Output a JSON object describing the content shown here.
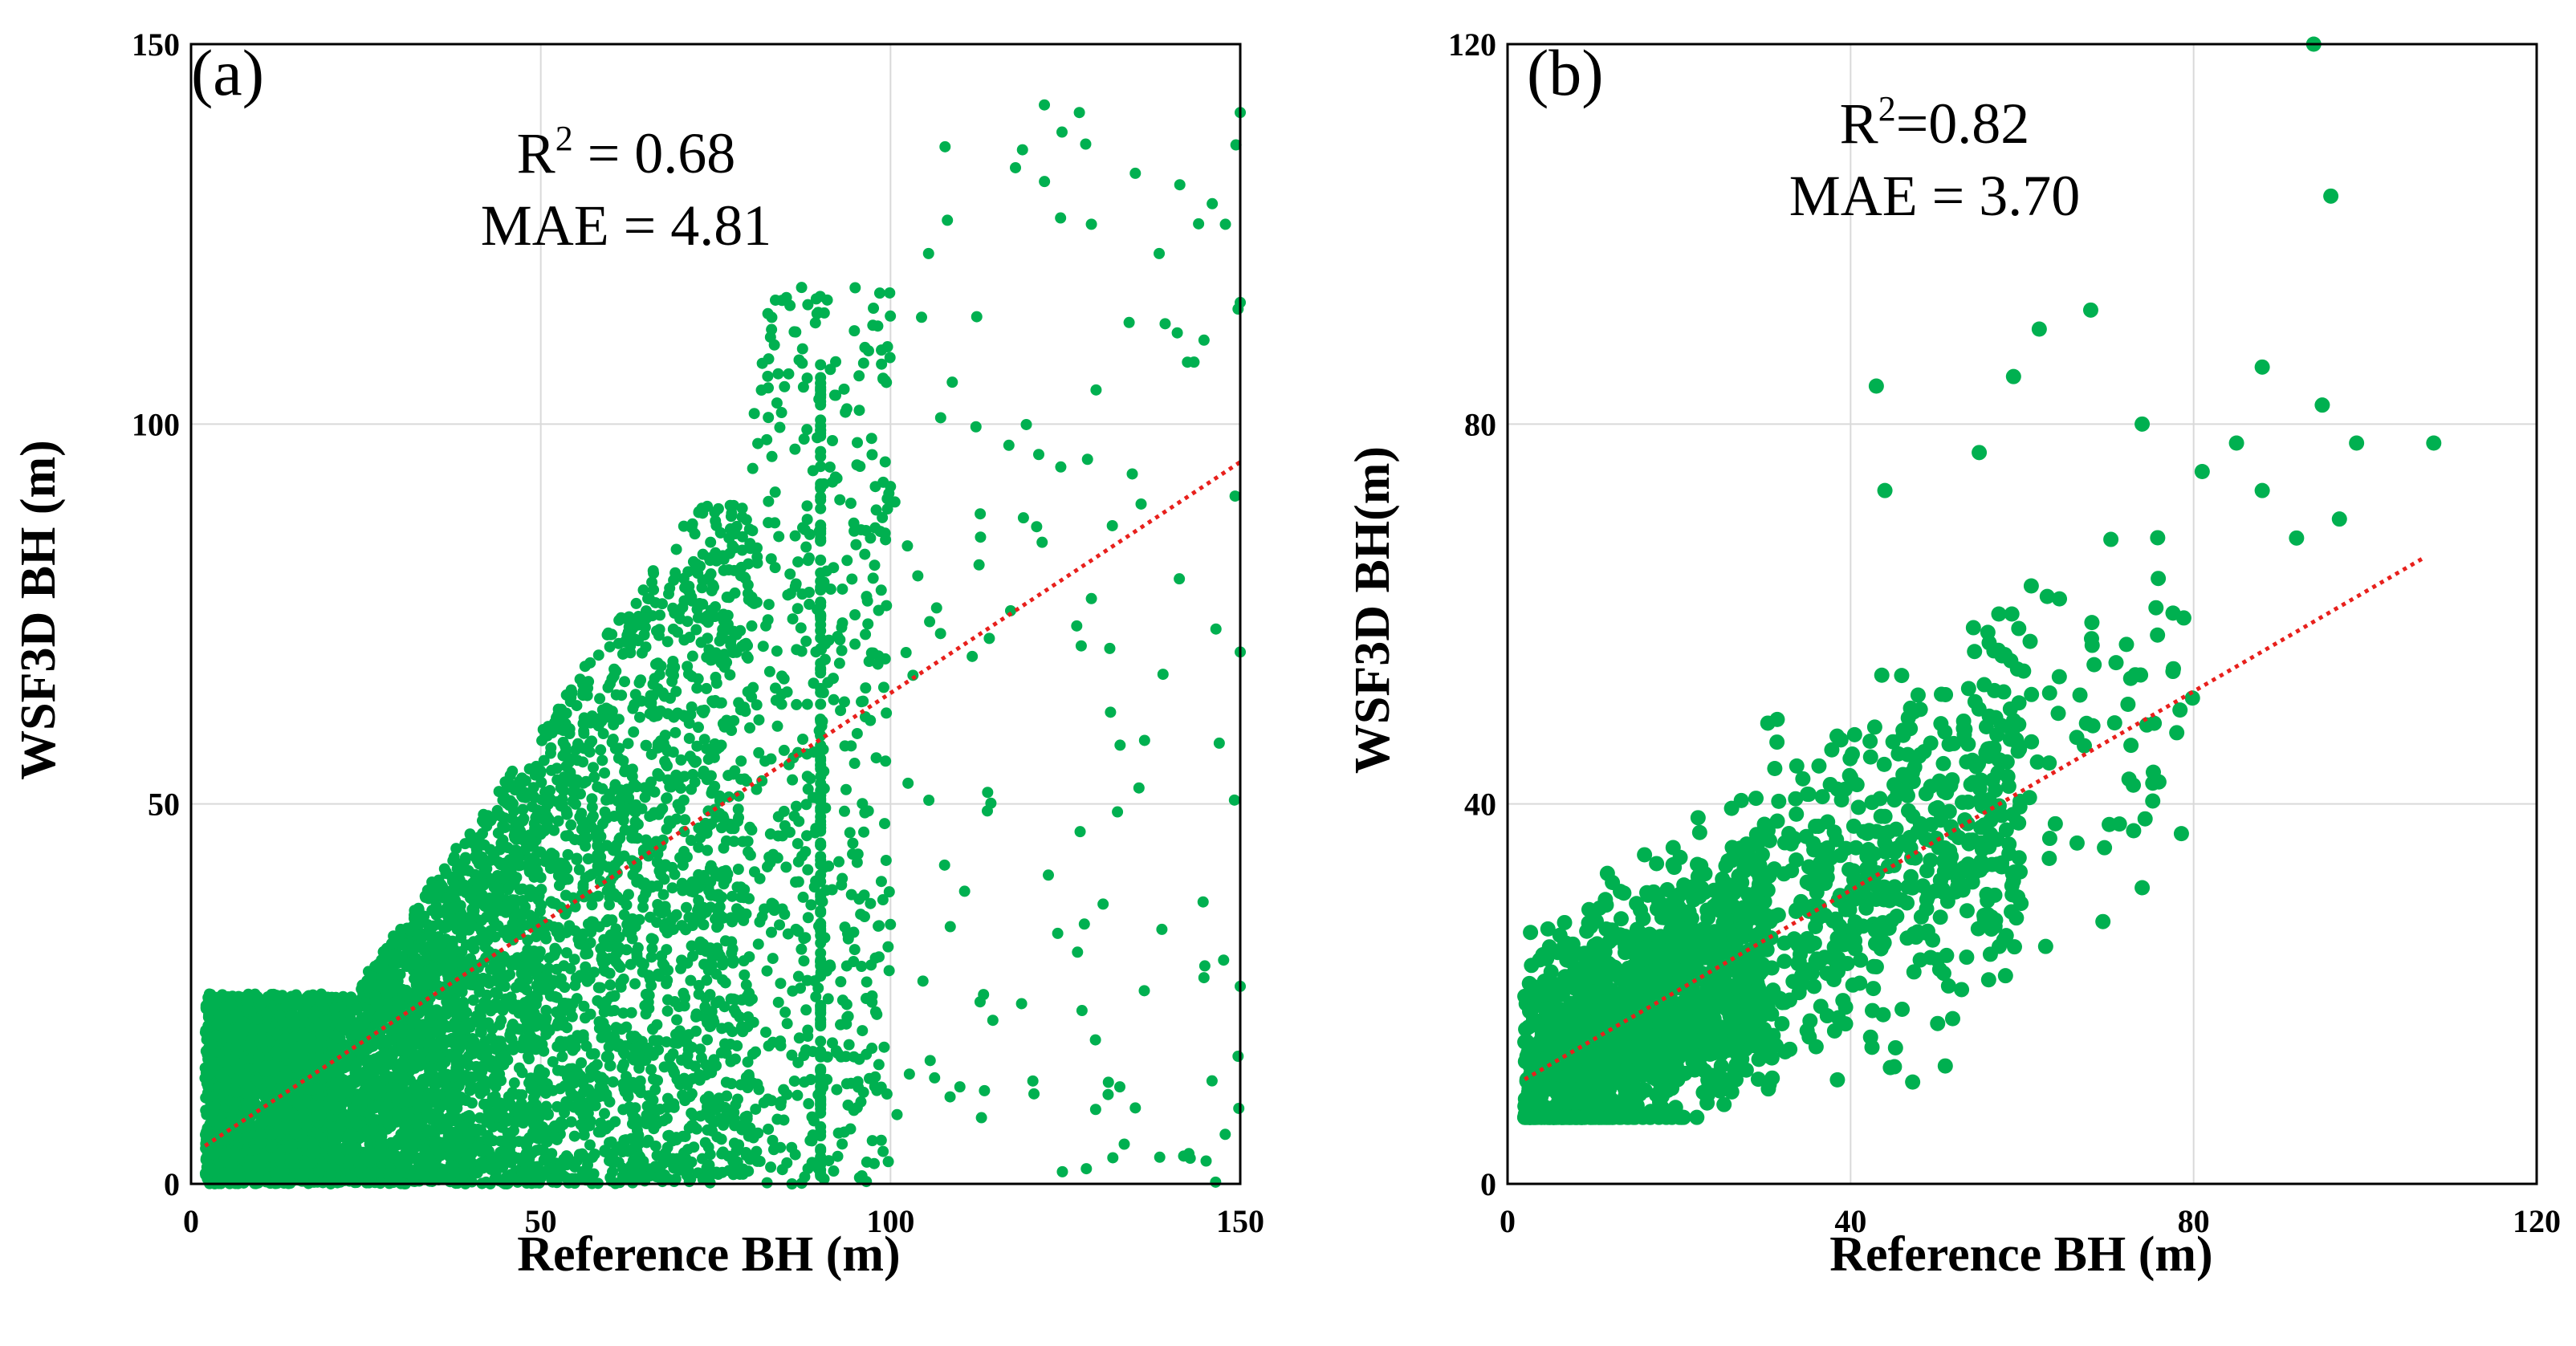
{
  "colors": {
    "points": "#00b050",
    "fit_line": "#e8201c",
    "grid": "#d9d9d9"
  },
  "chart_data": [
    {
      "type": "scatter",
      "panel_label": "(a)",
      "xlabel": "Reference BH (m)",
      "ylabel": "WSF3D BH (m)",
      "xlim": [
        0,
        150
      ],
      "ylim": [
        0,
        150
      ],
      "xticks": [
        0,
        50,
        100,
        150
      ],
      "yticks": [
        0,
        50,
        100,
        150
      ],
      "grid": true,
      "stats": {
        "r2_prefix": "R",
        "r2_sup": "2",
        "r2_value": " = 0.68",
        "mae": "MAE = 4.81"
      },
      "fit_line": {
        "style": "dotted",
        "x": [
          2,
          150
        ],
        "y": [
          5,
          95
        ]
      },
      "point_clusters": [
        {
          "x_range": [
            2,
            20
          ],
          "y_range": [
            0,
            25
          ],
          "count": 1800
        },
        {
          "x_range": [
            20,
            50
          ],
          "y_range": [
            0,
            55
          ],
          "count": 2200,
          "y_cap": "1.3x - 5"
        },
        {
          "x_range": [
            50,
            80
          ],
          "y_range": [
            0,
            90
          ],
          "count": 1600,
          "y_cap": "1.3x - 5"
        },
        {
          "x_range": [
            80,
            100
          ],
          "y_range": [
            0,
            118
          ],
          "count": 500
        },
        {
          "x_range": [
            100,
            150
          ],
          "y_range": [
            0,
            142
          ],
          "count": 120
        }
      ],
      "outliers": [
        {
          "x": 122,
          "y": 142
        },
        {
          "x": 127,
          "y": 141
        },
        {
          "x": 150,
          "y": 141
        },
        {
          "x": 135,
          "y": 133
        },
        {
          "x": 146,
          "y": 129
        },
        {
          "x": 150,
          "y": 116
        },
        {
          "x": 141,
          "y": 112
        },
        {
          "x": 150,
          "y": 70
        },
        {
          "x": 147,
          "y": 58
        },
        {
          "x": 150,
          "y": 26
        },
        {
          "x": 128,
          "y": 2
        },
        {
          "x": 135,
          "y": 10
        }
      ]
    },
    {
      "type": "scatter",
      "panel_label": "(b)",
      "xlabel": "Reference BH (m)",
      "ylabel": "WSF3D BH(m)",
      "xlim": [
        0,
        120
      ],
      "ylim": [
        0,
        120
      ],
      "xticks": [
        0,
        40,
        80,
        120
      ],
      "yticks": [
        0,
        40,
        80,
        120
      ],
      "grid": true,
      "stats": {
        "r2_prefix": "R",
        "r2_sup": "2",
        "r2_value": "=0.82",
        "mae": "MAE = 3.70"
      },
      "fit_line": {
        "style": "dotted",
        "x": [
          2,
          107
        ],
        "y": [
          11,
          66
        ]
      },
      "point_clusters": [
        {
          "x_range": [
            2,
            30
          ],
          "y_range": [
            7,
            45
          ],
          "count": 1400
        },
        {
          "x_range": [
            30,
            60
          ],
          "y_range": [
            10,
            60
          ],
          "count": 500
        },
        {
          "x_range": [
            55,
            80
          ],
          "y_range": [
            25,
            80
          ],
          "count": 80
        }
      ],
      "outliers": [
        {
          "x": 94,
          "y": 120
        },
        {
          "x": 96,
          "y": 104
        },
        {
          "x": 68,
          "y": 92
        },
        {
          "x": 62,
          "y": 90
        },
        {
          "x": 88,
          "y": 86
        },
        {
          "x": 59,
          "y": 85
        },
        {
          "x": 43,
          "y": 84
        },
        {
          "x": 95,
          "y": 82
        },
        {
          "x": 108,
          "y": 78
        },
        {
          "x": 99,
          "y": 78
        },
        {
          "x": 85,
          "y": 78
        },
        {
          "x": 74,
          "y": 80
        },
        {
          "x": 44,
          "y": 73
        },
        {
          "x": 97,
          "y": 70
        },
        {
          "x": 92,
          "y": 68
        },
        {
          "x": 88,
          "y": 73
        },
        {
          "x": 55,
          "y": 77
        },
        {
          "x": 81,
          "y": 75
        }
      ]
    }
  ]
}
